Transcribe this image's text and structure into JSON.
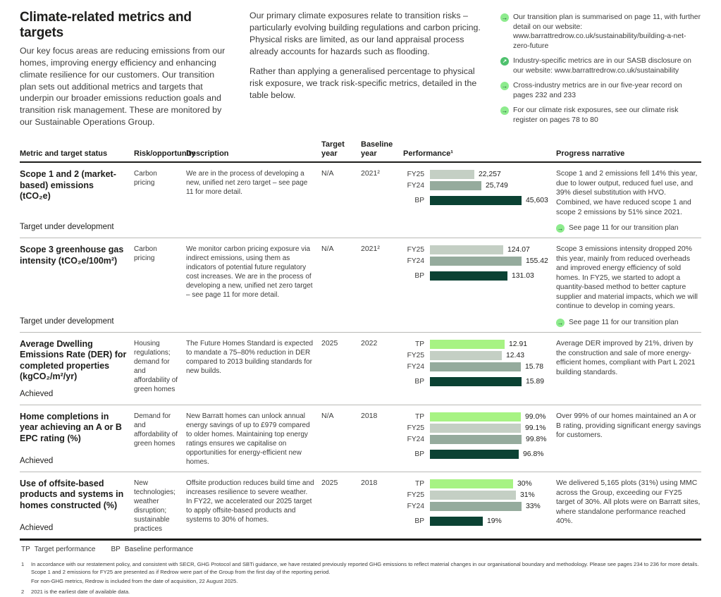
{
  "colors": {
    "tp": "#a7f383",
    "fy25": "#c4cfc4",
    "fy24": "#95ab9d",
    "bp": "#0b4233",
    "icon_light_green": "#8deb8d",
    "icon_dark_green": "#4ec16d"
  },
  "page": {
    "title": "Climate-related metrics and targets",
    "intro_left": "Our key focus areas are reducing emissions from our homes, improving energy efficiency and enhancing climate resilience for our customers. Our transition plan sets out additional metrics and targets that underpin our broader emissions reduction goals and transition risk management. These are monitored by our Sustainable Operations Group.",
    "intro_mid": [
      "Our primary climate exposures relate to transition risks – particularly evolving building regulations and carbon pricing. Physical risks are limited, as our land appraisal process already accounts for hazards such as flooding.",
      "Rather than applying a generalised percentage to physical risk exposure, we track risk-specific metrics, detailed in the table below."
    ],
    "links": [
      {
        "icon": "arrow-right-icon",
        "text": "Our transition plan is summarised on page 11, with further detail on our website: www.barrattredrow.co.uk/sustainability/building-a-net-zero-future"
      },
      {
        "icon": "external-link-icon",
        "text": "Industry-specific metrics are in our SASB disclosure on our website: www.barrattredrow.co.uk/sustainability"
      },
      {
        "icon": "arrow-right-icon",
        "text": "Cross-industry metrics are in our five-year record on pages 232 and 233"
      },
      {
        "icon": "arrow-right-icon",
        "text": "For our climate risk exposures, see our climate risk register on pages 78 to 80"
      }
    ]
  },
  "table": {
    "headers": [
      "Metric and target status",
      "Risk/opportunity",
      "Description",
      "Target year",
      "Baseline year",
      "Performance¹",
      "Progress narrative"
    ],
    "rows": [
      {
        "metric": "Scope 1 and 2 (market-based) emissions (tCO₂e)",
        "status": "Target under development",
        "risk": "Carbon pricing",
        "description": "We are in the process of developing a new, unified net zero target – see page 11 for more detail.",
        "target_year": "N/A",
        "baseline_year": "2021²",
        "bar_max": 45603,
        "bars": [
          {
            "label": "FY25",
            "series": "fy25",
            "value": 22257,
            "display": "22,257"
          },
          {
            "label": "FY24",
            "series": "fy24",
            "value": 25749,
            "display": "25,749"
          },
          {
            "label": "BP",
            "series": "bp",
            "value": 45603,
            "display": "45,603"
          }
        ],
        "narrative": "Scope 1 and 2 emissions fell 14% this year, due to lower output, reduced fuel use, and 39% diesel substitution with HVO. Combined, we have reduced scope 1 and scope 2 emissions by 51% since 2021.",
        "narrative_link": "See page 11 for our transition plan"
      },
      {
        "metric": "Scope 3 greenhouse gas intensity (tCO₂e/100m²)",
        "status": "Target under development",
        "risk": "Carbon pricing",
        "description": "We monitor carbon pricing exposure via indirect emissions, using them as indicators of potential future regulatory cost increases. We are in the process of developing a new, unified net zero target – see page 11 for more detail.",
        "target_year": "N/A",
        "baseline_year": "2021²",
        "bar_max": 155.42,
        "bars": [
          {
            "label": "FY25",
            "series": "fy25",
            "value": 124.07,
            "display": "124.07"
          },
          {
            "label": "FY24",
            "series": "fy24",
            "value": 155.42,
            "display": "155.42"
          },
          {
            "label": "BP",
            "series": "bp",
            "value": 131.03,
            "display": "131.03"
          }
        ],
        "narrative": "Scope 3 emissions intensity dropped 20% this year, mainly from reduced overheads and improved energy efficiency of sold homes. In FY25, we started to adopt a quantity-based method to better capture supplier and material impacts, which we will continue to develop in coming years.",
        "narrative_link": "See page 11 for our transition plan"
      },
      {
        "metric": "Average Dwelling Emissions Rate (DER) for completed properties (kgCO₂/m²/yr)",
        "status": "Achieved",
        "risk": "Housing regulations; demand for and affordability of green homes",
        "description": "The Future Homes Standard is expected to mandate a 75–80% reduction in DER compared to 2013 building standards for new builds.",
        "target_year": "2025",
        "baseline_year": "2022",
        "bar_max": 15.89,
        "bars": [
          {
            "label": "TP",
            "series": "tp",
            "value": 12.91,
            "display": "12.91"
          },
          {
            "label": "FY25",
            "series": "fy25",
            "value": 12.43,
            "display": "12.43"
          },
          {
            "label": "FY24",
            "series": "fy24",
            "value": 15.78,
            "display": "15.78"
          },
          {
            "label": "BP",
            "series": "bp",
            "value": 15.89,
            "display": "15.89"
          }
        ],
        "narrative": "Average DER improved by 21%, driven by the construction and sale of more energy-efficient homes, compliant with Part L 2021 building standards.",
        "narrative_link": ""
      },
      {
        "metric": "Home completions in year achieving an A or B EPC rating (%)",
        "status": "Achieved",
        "risk": "Demand for and affordability of green homes",
        "description": "New Barratt homes can unlock annual energy savings of up to £979 compared to older homes. Maintaining top energy ratings ensures we capitalise on opportunities for energy-efficient new homes.",
        "target_year": "N/A",
        "baseline_year": "2018",
        "bar_max": 99.8,
        "bars": [
          {
            "label": "TP",
            "series": "tp",
            "value": 99.0,
            "display": "99.0%"
          },
          {
            "label": "FY25",
            "series": "fy25",
            "value": 99.1,
            "display": "99.1%"
          },
          {
            "label": "FY24",
            "series": "fy24",
            "value": 99.8,
            "display": "99.8%"
          },
          {
            "label": "BP",
            "series": "bp",
            "value": 96.8,
            "display": "96.8%"
          }
        ],
        "narrative": "Over 99% of our homes maintained an A or B rating, providing significant energy savings for customers.",
        "narrative_link": ""
      },
      {
        "metric": "Use of offsite-based products and systems in homes constructed (%)",
        "status": "Achieved",
        "risk": "New technologies; weather disruption; sustainable practices",
        "description": "Offsite production reduces build time and increases resilience to severe weather. In FY22, we accelerated our 2025 target to apply offsite-based products and systems to 30% of homes.",
        "target_year": "2025",
        "baseline_year": "2018",
        "bar_max": 33,
        "bars": [
          {
            "label": "TP",
            "series": "tp",
            "value": 30,
            "display": "30%"
          },
          {
            "label": "FY25",
            "series": "fy25",
            "value": 31,
            "display": "31%"
          },
          {
            "label": "FY24",
            "series": "fy24",
            "value": 33,
            "display": "33%"
          },
          {
            "label": "BP",
            "series": "bp",
            "value": 19,
            "display": "19%"
          }
        ],
        "narrative": "We delivered 5,165 plots (31%) using MMC across the Group, exceeding our FY25 target of 30%. All plots were on Barratt sites, where standalone performance reached 40%.",
        "narrative_link": ""
      }
    ]
  },
  "footnotes": {
    "legend": [
      {
        "abbr": "TP",
        "label": "Target performance"
      },
      {
        "abbr": "BP",
        "label": "Baseline performance"
      }
    ],
    "items": [
      {
        "num": "1",
        "lines": [
          "In accordance with our restatement policy, and consistent with SECR, GHG Protocol and SBTi guidance, we have restated previously reported GHG emissions to reflect material changes in our organisational boundary and methodology. Please see pages 234 to 236 for more details. Scope 1 and 2 emissions for FY25 are presented as if Redrow were part of the Group from the first day of the reporting period.",
          "For non-GHG metrics, Redrow is included from the date of acquisition, 22 August 2025."
        ]
      },
      {
        "num": "2",
        "lines": [
          "2021 is the earliest date of available data."
        ]
      }
    ]
  },
  "chart_data": [
    {
      "type": "bar",
      "orientation": "horizontal",
      "title": "Scope 1 and 2 (market-based) emissions (tCO₂e)",
      "categories": [
        "FY25",
        "FY24",
        "BP"
      ],
      "values": [
        22257,
        25749,
        45603
      ]
    },
    {
      "type": "bar",
      "orientation": "horizontal",
      "title": "Scope 3 greenhouse gas intensity (tCO₂e/100m²)",
      "categories": [
        "FY25",
        "FY24",
        "BP"
      ],
      "values": [
        124.07,
        155.42,
        131.03
      ]
    },
    {
      "type": "bar",
      "orientation": "horizontal",
      "title": "Average Dwelling Emissions Rate (DER) for completed properties (kgCO₂/m²/yr)",
      "categories": [
        "TP",
        "FY25",
        "FY24",
        "BP"
      ],
      "values": [
        12.91,
        12.43,
        15.78,
        15.89
      ]
    },
    {
      "type": "bar",
      "orientation": "horizontal",
      "title": "Home completions in year achieving an A or B EPC rating (%)",
      "categories": [
        "TP",
        "FY25",
        "FY24",
        "BP"
      ],
      "values": [
        99.0,
        99.1,
        99.8,
        96.8
      ]
    },
    {
      "type": "bar",
      "orientation": "horizontal",
      "title": "Use of offsite-based products and systems in homes constructed (%)",
      "categories": [
        "TP",
        "FY25",
        "FY24",
        "BP"
      ],
      "values": [
        30,
        31,
        33,
        19
      ]
    }
  ]
}
